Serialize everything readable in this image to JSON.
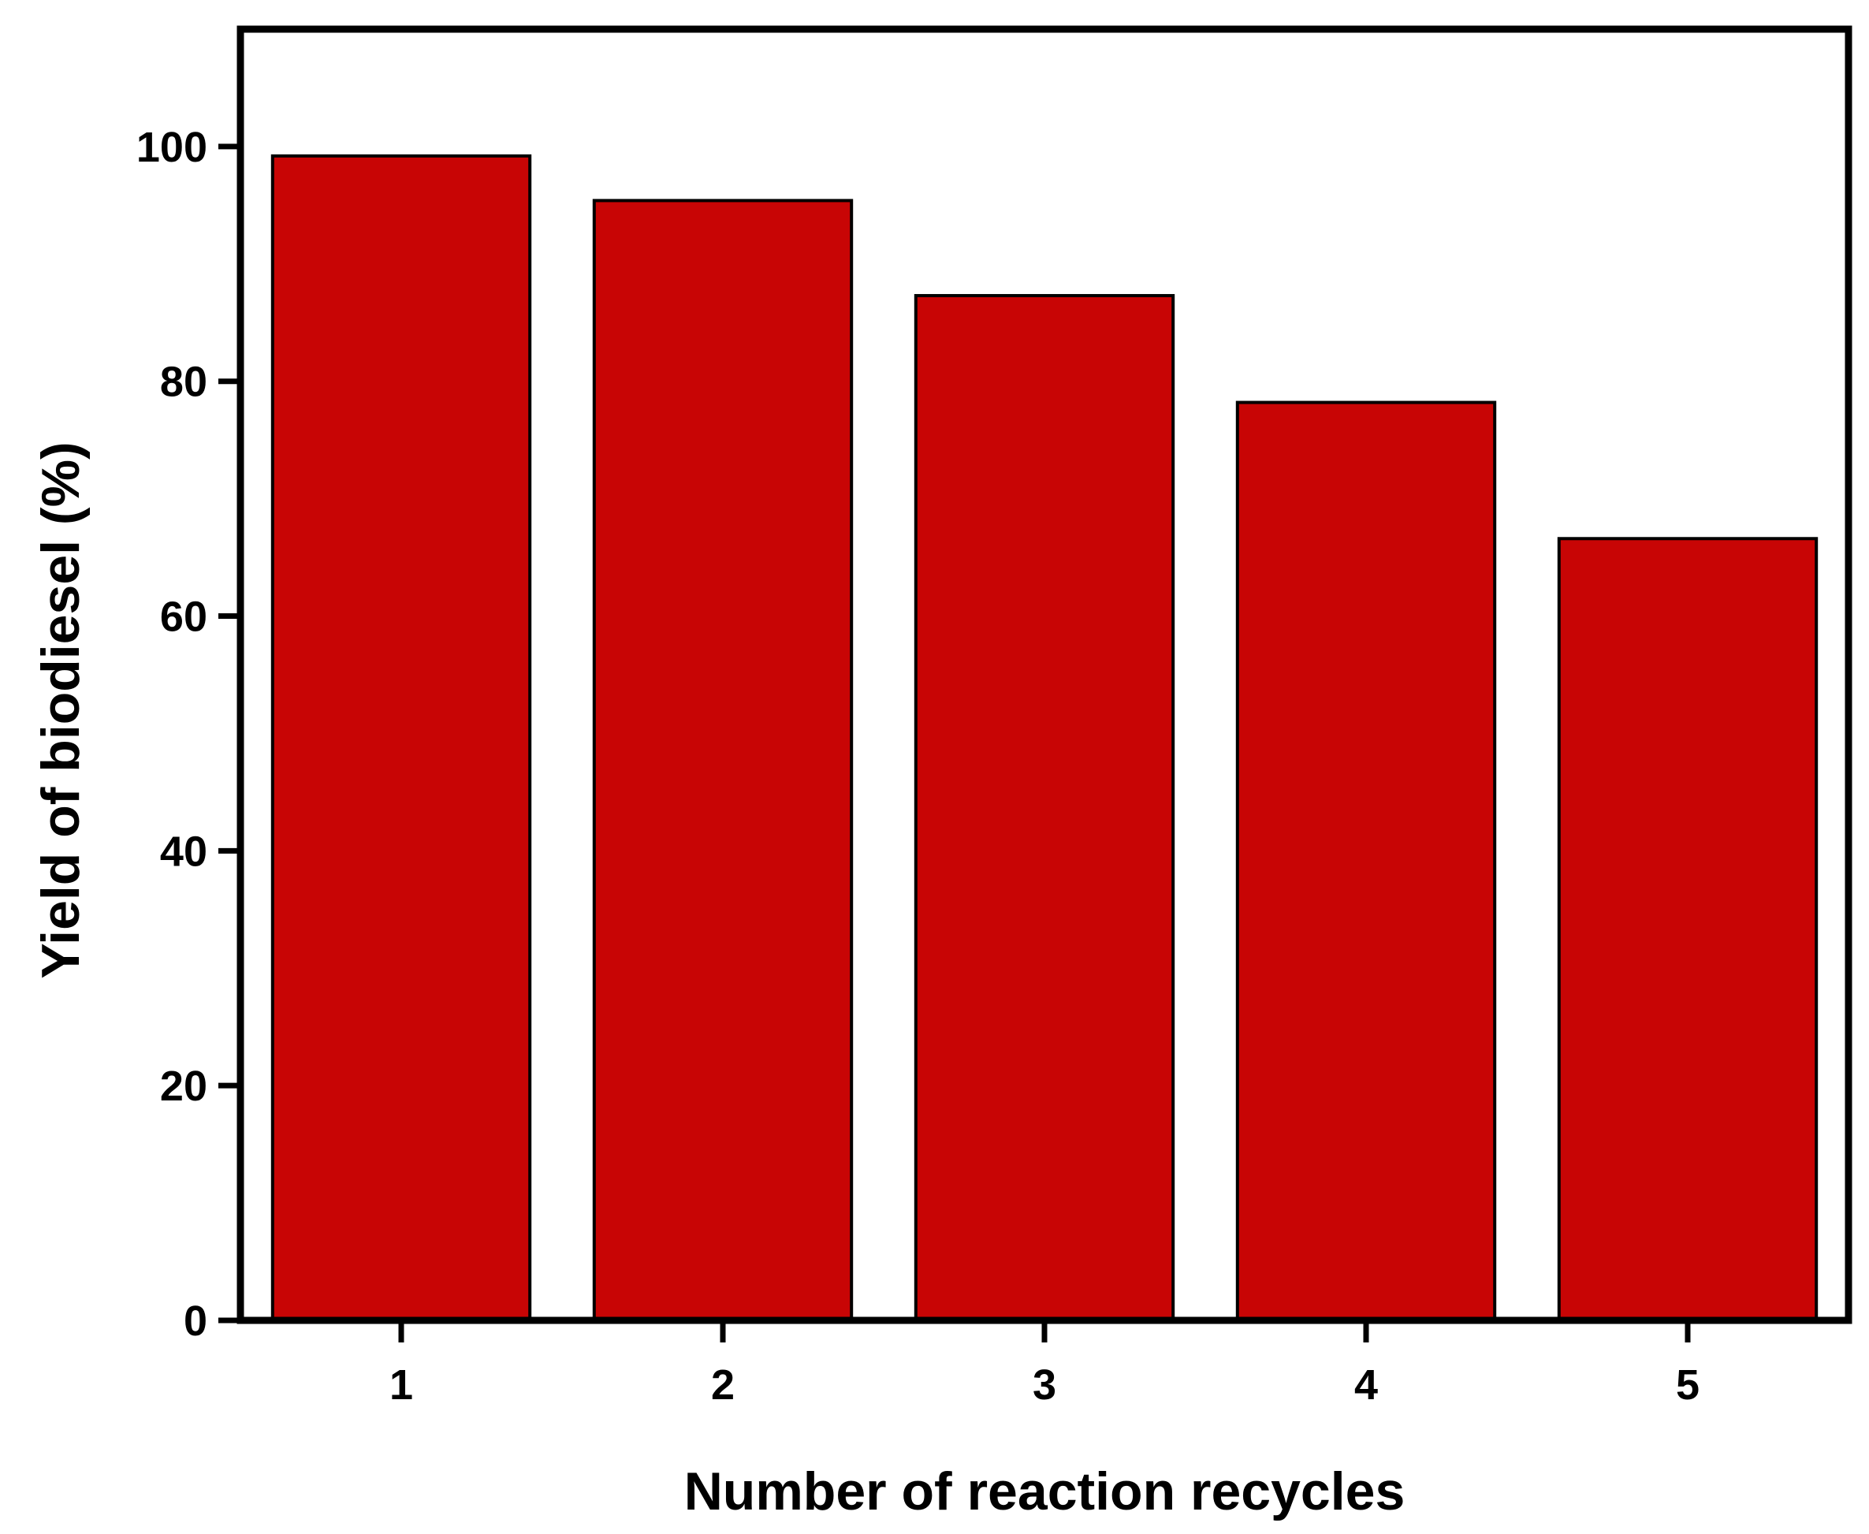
{
  "chart_data": {
    "type": "bar",
    "categories": [
      "1",
      "2",
      "3",
      "4",
      "5"
    ],
    "values": [
      99.2,
      95.4,
      87.3,
      78.2,
      66.6
    ],
    "xlabel": "Number of reaction recycles",
    "ylabel": "Yield of biodiesel (%)",
    "ylim": [
      0,
      110
    ],
    "yticks": [
      0,
      20,
      40,
      60,
      80,
      100
    ],
    "grid": false,
    "bar_color": "#C80505",
    "edge_color": "#000000"
  }
}
